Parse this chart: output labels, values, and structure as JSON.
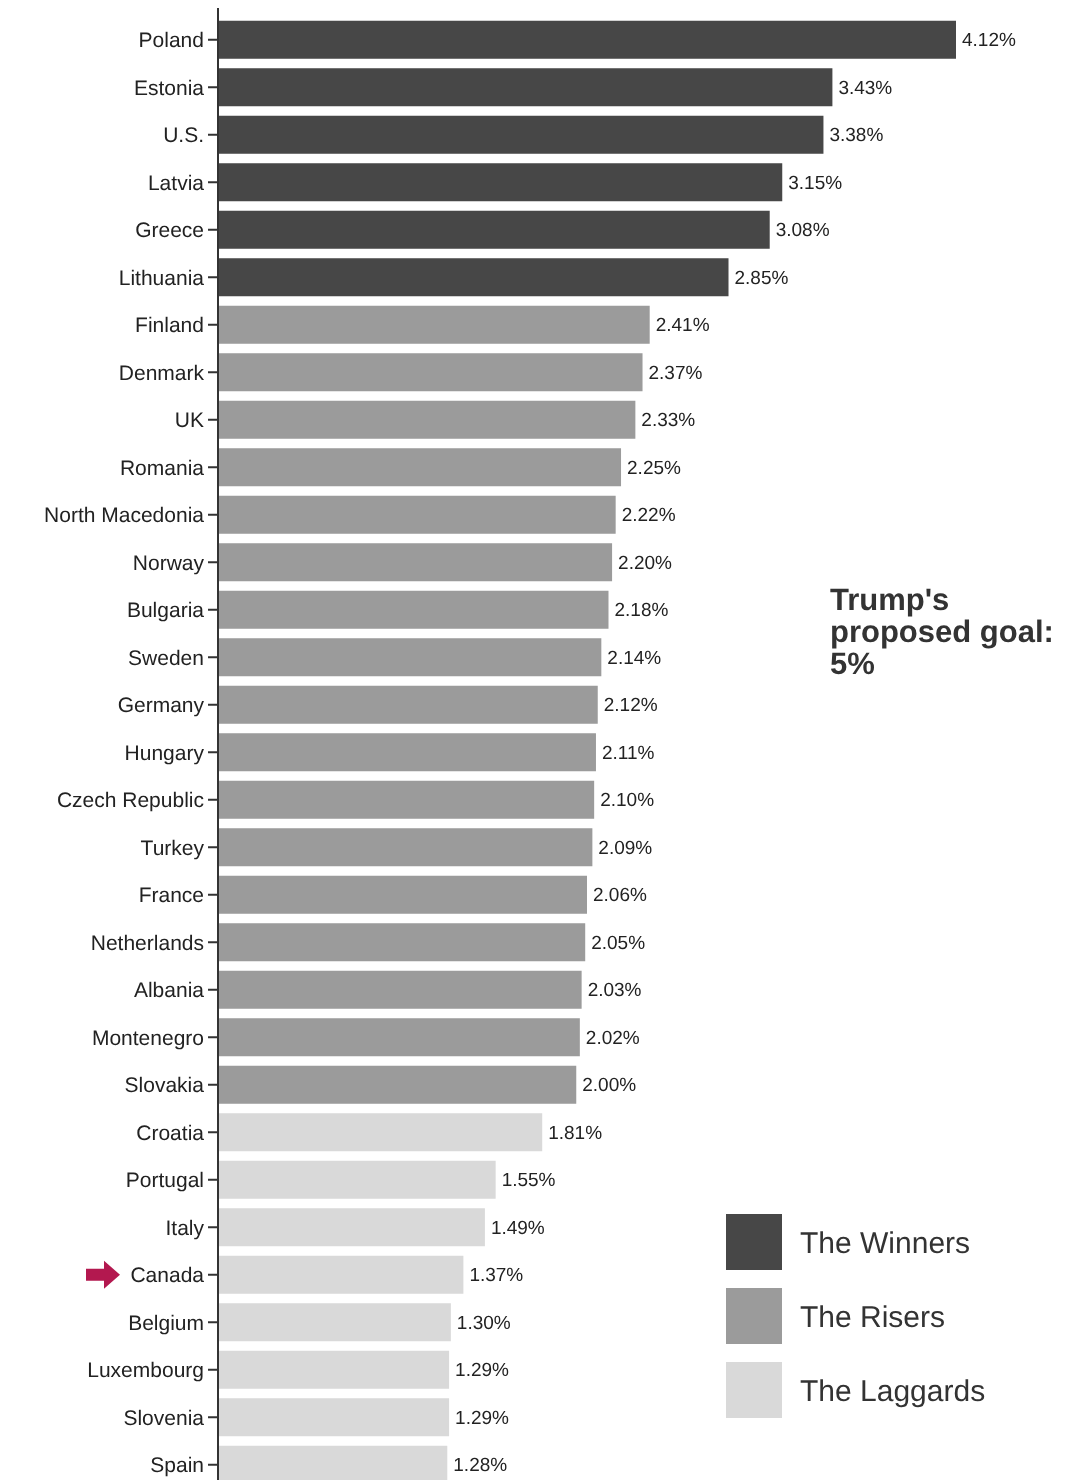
{
  "chart_data": {
    "type": "bar",
    "orientation": "horizontal",
    "legend": "bottom right",
    "categories": [
      "Poland",
      "Estonia",
      "U.S.",
      "Latvia",
      "Greece",
      "Lithuania",
      "Finland",
      "Denmark",
      "UK",
      "Romania",
      "North Macedonia",
      "Norway",
      "Bulgaria",
      "Sweden",
      "Germany",
      "Hungary",
      "Czech Republic",
      "Turkey",
      "France",
      "Netherlands",
      "Albania",
      "Montenegro",
      "Slovakia",
      "Croatia",
      "Portugal",
      "Italy",
      "Canada",
      "Belgium",
      "Luxembourg",
      "Slovenia",
      "Spain"
    ],
    "series": [
      {
        "name": "The Winners",
        "color": "#474747",
        "values": [
          4.12,
          3.43,
          3.38,
          3.15,
          3.08,
          2.85,
          null,
          null,
          null,
          null,
          null,
          null,
          null,
          null,
          null,
          null,
          null,
          null,
          null,
          null,
          null,
          null,
          null,
          null,
          null,
          null,
          null,
          null,
          null,
          null,
          null
        ],
        "value_labels": [
          "4.12%",
          "3.43%",
          "3.38%",
          "3.15%",
          "3.08%",
          "2.85%",
          null,
          null,
          null,
          null,
          null,
          null,
          null,
          null,
          null,
          null,
          null,
          null,
          null,
          null,
          null,
          null,
          null,
          null,
          null,
          null,
          null,
          null,
          null,
          null,
          null
        ]
      },
      {
        "name": "The Risers",
        "color": "#9b9b9b",
        "values": [
          null,
          null,
          null,
          null,
          null,
          null,
          2.41,
          2.37,
          2.33,
          2.25,
          2.22,
          2.2,
          2.18,
          2.14,
          2.12,
          2.11,
          2.1,
          2.09,
          2.06,
          2.05,
          2.03,
          2.02,
          2.0,
          null,
          null,
          null,
          null,
          null,
          null,
          null,
          null
        ],
        "value_labels": [
          null,
          null,
          null,
          null,
          null,
          null,
          "2.41%",
          "2.37%",
          "2.33%",
          "2.25%",
          "2.22%",
          "2.20%",
          "2.18%",
          "2.14%",
          "2.12%",
          "2.11%",
          "2.10%",
          "2.09%",
          "2.06%",
          "2.05%",
          "2.03%",
          "2.02%",
          "2.00%",
          null,
          null,
          null,
          null,
          null,
          null,
          null,
          null
        ]
      },
      {
        "name": "The Laggards",
        "color": "#d9d9d9",
        "values": [
          null,
          null,
          null,
          null,
          null,
          null,
          null,
          null,
          null,
          null,
          null,
          null,
          null,
          null,
          null,
          null,
          null,
          null,
          null,
          null,
          null,
          null,
          null,
          1.81,
          1.55,
          1.49,
          1.37,
          1.3,
          1.29,
          1.29,
          1.28
        ],
        "value_labels": [
          null,
          null,
          null,
          null,
          null,
          null,
          null,
          null,
          null,
          null,
          null,
          null,
          null,
          null,
          null,
          null,
          null,
          null,
          null,
          null,
          null,
          null,
          null,
          "1.81%",
          "1.55%",
          "1.49%",
          "1.37%",
          "1.30%",
          "1.29%",
          "1.29%",
          "1.28%"
        ]
      }
    ],
    "annotations": [
      "Trump's proposed goal: 5%"
    ]
  }
}
